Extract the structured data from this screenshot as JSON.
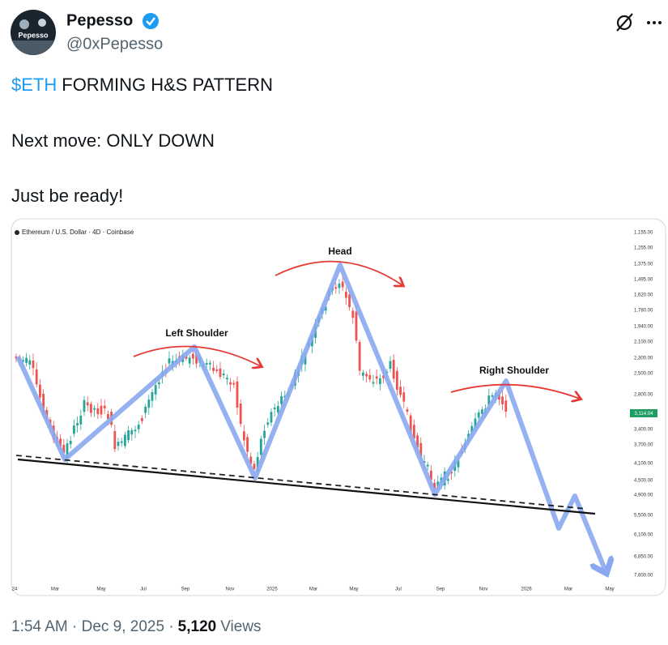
{
  "author": {
    "name": "Pepesso",
    "handle": "@0xPepesso",
    "avatar_text": "Pepesso"
  },
  "tweet": {
    "cashtag": "$ETH",
    "line1": "FORMING H&S PATTERN",
    "line2": "Next move: ONLY DOWN",
    "line3": "Just be ready!"
  },
  "chart_image": {
    "title": "Ethereum / U.S. Dollar · 4D · Coinbase",
    "annotations": {
      "left_shoulder": "Left Shoulder",
      "head": "Head",
      "right_shoulder": "Right Shoulder"
    },
    "price_labels": [
      "1,155.00",
      "1,255.00",
      "1,375.00",
      "1,495.00",
      "1,620.00",
      "1,780.00",
      "1,940.00",
      "2,100.00",
      "2,300.00",
      "2,500.00",
      "2,800.00",
      "3,400.00",
      "3,700.00",
      "4,100.00",
      "4,500.00",
      "4,900.00",
      "5,500.00",
      "6,100.00",
      "6,850.00",
      "7,600.00"
    ],
    "last_price": "3,114.04",
    "time_labels": [
      "24",
      "Mar",
      "May",
      "Jul",
      "Sep",
      "Nov",
      "2025",
      "Mar",
      "May",
      "Jul",
      "Sep",
      "Nov",
      "2026",
      "Mar",
      "May"
    ]
  },
  "footer": {
    "timestamp": "1:54 AM · Dec 9, 2025 ·",
    "views_count": "5,120",
    "views_label": "Views"
  }
}
